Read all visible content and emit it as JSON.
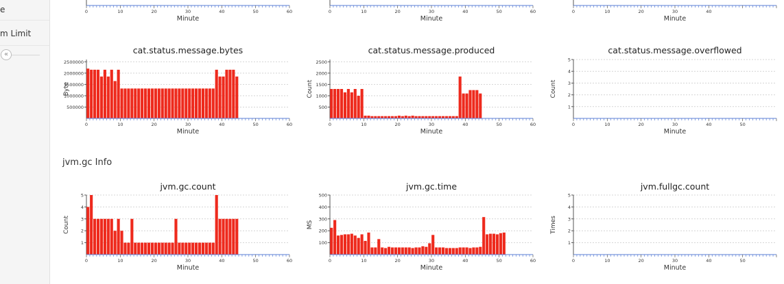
{
  "sidebar": {
    "items": [
      {
        "label": "e"
      },
      {
        "label": "m Limit"
      }
    ],
    "collapse_icon": "double-chevron-left-icon"
  },
  "section": {
    "title": "jvm.gc Info"
  },
  "colors": {
    "bar": "#ee2a1d",
    "grid": "#d4d4d4",
    "axis": "#5b7fd6"
  },
  "chart_data": [
    {
      "type": "bar",
      "title": "",
      "xlabel": "Minute",
      "ylabel": "",
      "xlim": [
        0,
        60
      ],
      "xticks": [
        0,
        10,
        20,
        30,
        40,
        50,
        60
      ],
      "ylim": [
        0,
        5
      ],
      "yticks": [],
      "values": []
    },
    {
      "type": "bar",
      "title": "",
      "xlabel": "Minute",
      "ylabel": "",
      "xlim": [
        0,
        60
      ],
      "xticks": [
        0,
        10,
        20,
        30,
        40,
        50,
        60
      ],
      "ylim": [
        0,
        5
      ],
      "yticks": [],
      "values": []
    },
    {
      "type": "bar",
      "title": "",
      "xlabel": "Minute",
      "ylabel": "",
      "xlim": [
        0,
        60
      ],
      "xticks": [
        0,
        10,
        20,
        30,
        40
      ],
      "ylim": [
        0,
        5
      ],
      "yticks": [],
      "values": []
    },
    {
      "type": "bar",
      "title": "cat.status.message.bytes",
      "xlabel": "Minute",
      "ylabel": "Byte",
      "xlim": [
        0,
        60
      ],
      "xticks": [
        0,
        10,
        20,
        30,
        40,
        50,
        60
      ],
      "ylim": [
        0,
        2600000
      ],
      "yticks": [
        500000,
        1000000,
        1500000,
        2000000,
        2500000
      ],
      "values": [
        2200000,
        2150000,
        2150000,
        2150000,
        1850000,
        2150000,
        1850000,
        2150000,
        1650000,
        2150000,
        1320000,
        1320000,
        1320000,
        1320000,
        1320000,
        1320000,
        1320000,
        1320000,
        1320000,
        1320000,
        1320000,
        1320000,
        1320000,
        1320000,
        1320000,
        1320000,
        1320000,
        1320000,
        1320000,
        1320000,
        1320000,
        1320000,
        1320000,
        1320000,
        1320000,
        1320000,
        1320000,
        1320000,
        2150000,
        1850000,
        1850000,
        2150000,
        2150000,
        2150000,
        1850000
      ]
    },
    {
      "type": "bar",
      "title": "cat.status.message.produced",
      "xlabel": "Minute",
      "ylabel": "Count",
      "xlim": [
        0,
        60
      ],
      "xticks": [
        0,
        10,
        20,
        30,
        40,
        50,
        60
      ],
      "ylim": [
        0,
        2600
      ],
      "yticks": [
        500,
        1000,
        1500,
        2000,
        2500
      ],
      "values": [
        1300,
        1300,
        1300,
        1300,
        1150,
        1300,
        1150,
        1300,
        1000,
        1300,
        120,
        120,
        100,
        100,
        100,
        100,
        100,
        100,
        100,
        100,
        120,
        100,
        120,
        100,
        120,
        100,
        100,
        100,
        100,
        100,
        100,
        100,
        100,
        100,
        100,
        100,
        100,
        100,
        1850,
        1100,
        1100,
        1250,
        1250,
        1250,
        1100
      ]
    },
    {
      "type": "bar",
      "title": "cat.status.message.overflowed",
      "xlabel": "Minute",
      "ylabel": "Count",
      "xlim": [
        0,
        60
      ],
      "xticks": [
        0,
        10,
        20,
        30,
        40,
        50
      ],
      "ylim": [
        0,
        5
      ],
      "yticks": [
        1,
        2,
        3,
        4,
        5
      ],
      "values": []
    },
    {
      "type": "bar",
      "title": "jvm.gc.count",
      "xlabel": "Minute",
      "ylabel": "Count",
      "xlim": [
        0,
        60
      ],
      "xticks": [
        0,
        10,
        20,
        30,
        40,
        50,
        60
      ],
      "ylim": [
        0,
        5
      ],
      "yticks": [
        1,
        2,
        3,
        4,
        5
      ],
      "values": [
        4,
        5,
        3,
        3,
        3,
        3,
        3,
        3,
        2,
        3,
        2,
        1,
        1,
        3,
        1,
        1,
        1,
        1,
        1,
        1,
        1,
        1,
        1,
        1,
        1,
        1,
        3,
        1,
        1,
        1,
        1,
        1,
        1,
        1,
        1,
        1,
        1,
        1,
        5,
        3,
        3,
        3,
        3,
        3,
        3
      ]
    },
    {
      "type": "bar",
      "title": "jvm.gc.time",
      "xlabel": "Minute",
      "ylabel": "MS",
      "xlim": [
        0,
        60
      ],
      "xticks": [
        0,
        10,
        20,
        30,
        40,
        50,
        60
      ],
      "ylim": [
        0,
        500
      ],
      "yticks": [
        100,
        200,
        300,
        400,
        500
      ],
      "values": [
        225,
        290,
        160,
        165,
        170,
        170,
        175,
        160,
        140,
        170,
        115,
        185,
        60,
        60,
        130,
        60,
        55,
        65,
        60,
        60,
        60,
        60,
        60,
        60,
        55,
        60,
        60,
        70,
        65,
        95,
        165,
        60,
        60,
        60,
        55,
        55,
        55,
        55,
        60,
        60,
        60,
        55,
        60,
        60,
        65,
        315,
        170,
        175,
        175,
        170,
        180,
        185
      ]
    },
    {
      "type": "bar",
      "title": "jvm.fullgc.count",
      "xlabel": "Minute",
      "ylabel": "Times",
      "xlim": [
        0,
        60
      ],
      "xticks": [
        0,
        10,
        20,
        30,
        40,
        50
      ],
      "ylim": [
        0,
        5
      ],
      "yticks": [
        1,
        2,
        3,
        4,
        5
      ],
      "values": []
    }
  ]
}
